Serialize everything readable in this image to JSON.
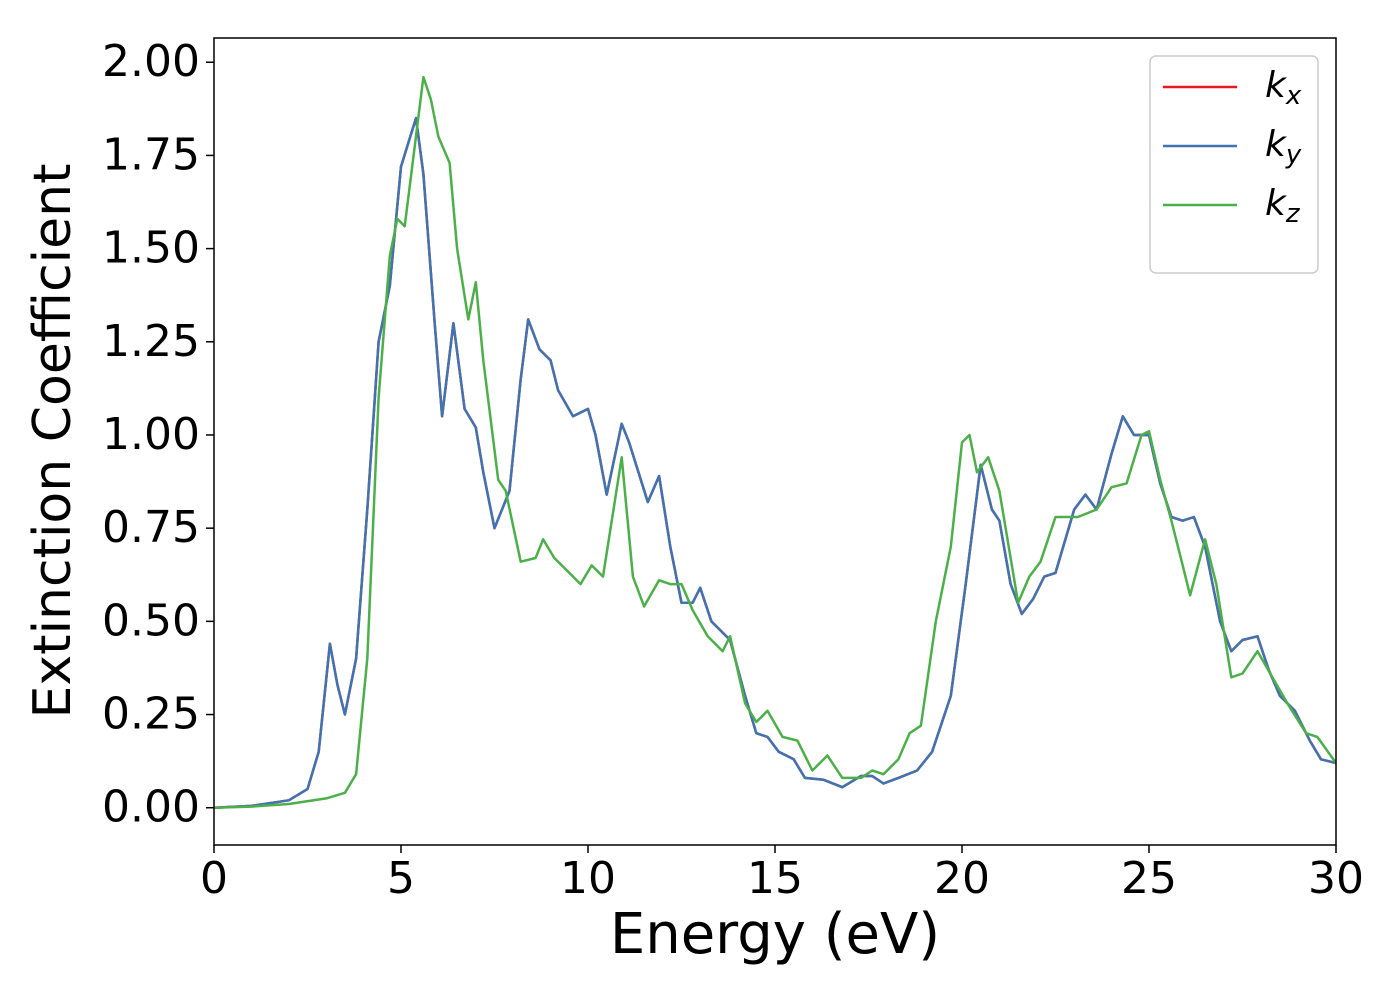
{
  "chart_data": {
    "type": "line",
    "xlabel": "Energy (eV)",
    "ylabel": "Extinction Coefficient",
    "xlim": [
      0,
      30
    ],
    "ylim": [
      -0.1,
      2.065
    ],
    "xticks": [
      0,
      5,
      10,
      15,
      20,
      25,
      30
    ],
    "yticks": [
      {
        "value": 0,
        "label": "0.00"
      },
      {
        "value": 0.25,
        "label": "0.25"
      },
      {
        "value": 0.5,
        "label": "0.50"
      },
      {
        "value": 0.75,
        "label": "0.75"
      },
      {
        "value": 1,
        "label": "1.00"
      },
      {
        "value": 1.25,
        "label": "1.25"
      },
      {
        "value": 1.5,
        "label": "1.50"
      },
      {
        "value": 1.75,
        "label": "1.75"
      },
      {
        "value": 2,
        "label": "2.00"
      }
    ],
    "legend": "upper right",
    "series": [
      {
        "name": "kx",
        "color": "#e41a1c",
        "x": [
          0,
          1,
          2,
          2.5,
          2.8,
          3.1,
          3.3,
          3.5,
          3.8,
          4.1,
          4.4,
          4.7,
          5.0,
          5.4,
          5.6,
          5.9,
          6.1,
          6.4,
          6.7,
          7.0,
          7.2,
          7.5,
          7.9,
          8.2,
          8.4,
          8.7,
          9.0,
          9.2,
          9.6,
          10.0,
          10.2,
          10.5,
          10.9,
          11.1,
          11.6,
          11.9,
          12.2,
          12.5,
          12.8,
          13.0,
          13.3,
          13.8,
          14.2,
          14.5,
          14.8,
          15.1,
          15.5,
          15.8,
          16.3,
          16.8,
          17.3,
          17.6,
          17.9,
          18.3,
          18.8,
          19.2,
          19.7,
          20.1,
          20.5,
          20.8,
          21.0,
          21.3,
          21.6,
          21.9,
          22.2,
          22.5,
          23.0,
          23.3,
          23.6,
          24.0,
          24.3,
          24.6,
          25.0,
          25.3,
          25.6,
          25.9,
          26.2,
          26.5,
          26.9,
          27.2,
          27.5,
          27.9,
          28.2,
          28.5,
          28.9,
          29.3,
          29.6,
          30
        ],
        "values": [
          0,
          0.005,
          0.02,
          0.05,
          0.15,
          0.44,
          0.33,
          0.25,
          0.4,
          0.8,
          1.25,
          1.4,
          1.72,
          1.85,
          1.7,
          1.3,
          1.05,
          1.3,
          1.07,
          1.02,
          0.9,
          0.75,
          0.85,
          1.15,
          1.31,
          1.23,
          1.2,
          1.12,
          1.05,
          1.07,
          1.0,
          0.84,
          1.03,
          0.98,
          0.82,
          0.89,
          0.7,
          0.55,
          0.55,
          0.59,
          0.5,
          0.45,
          0.3,
          0.2,
          0.19,
          0.15,
          0.13,
          0.08,
          0.075,
          0.055,
          0.085,
          0.085,
          0.065,
          0.08,
          0.1,
          0.15,
          0.3,
          0.6,
          0.92,
          0.8,
          0.77,
          0.6,
          0.52,
          0.56,
          0.62,
          0.63,
          0.8,
          0.84,
          0.8,
          0.95,
          1.05,
          1.0,
          1.0,
          0.87,
          0.78,
          0.77,
          0.78,
          0.7,
          0.5,
          0.42,
          0.45,
          0.46,
          0.37,
          0.3,
          0.26,
          0.18,
          0.13,
          0.12
        ]
      },
      {
        "name": "ky",
        "color": "#3f74b0",
        "x": [
          0,
          1,
          2,
          2.5,
          2.8,
          3.1,
          3.3,
          3.5,
          3.8,
          4.1,
          4.4,
          4.7,
          5.0,
          5.4,
          5.6,
          5.9,
          6.1,
          6.4,
          6.7,
          7.0,
          7.2,
          7.5,
          7.9,
          8.2,
          8.4,
          8.7,
          9.0,
          9.2,
          9.6,
          10.0,
          10.2,
          10.5,
          10.9,
          11.1,
          11.6,
          11.9,
          12.2,
          12.5,
          12.8,
          13.0,
          13.3,
          13.8,
          14.2,
          14.5,
          14.8,
          15.1,
          15.5,
          15.8,
          16.3,
          16.8,
          17.3,
          17.6,
          17.9,
          18.3,
          18.8,
          19.2,
          19.7,
          20.1,
          20.5,
          20.8,
          21.0,
          21.3,
          21.6,
          21.9,
          22.2,
          22.5,
          23.0,
          23.3,
          23.6,
          24.0,
          24.3,
          24.6,
          25.0,
          25.3,
          25.6,
          25.9,
          26.2,
          26.5,
          26.9,
          27.2,
          27.5,
          27.9,
          28.2,
          28.5,
          28.9,
          29.3,
          29.6,
          30
        ],
        "values": [
          0,
          0.005,
          0.02,
          0.05,
          0.15,
          0.44,
          0.33,
          0.25,
          0.4,
          0.8,
          1.25,
          1.4,
          1.72,
          1.85,
          1.7,
          1.3,
          1.05,
          1.3,
          1.07,
          1.02,
          0.9,
          0.75,
          0.85,
          1.15,
          1.31,
          1.23,
          1.2,
          1.12,
          1.05,
          1.07,
          1.0,
          0.84,
          1.03,
          0.98,
          0.82,
          0.89,
          0.7,
          0.55,
          0.55,
          0.59,
          0.5,
          0.45,
          0.3,
          0.2,
          0.19,
          0.15,
          0.13,
          0.08,
          0.075,
          0.055,
          0.085,
          0.085,
          0.065,
          0.08,
          0.1,
          0.15,
          0.3,
          0.6,
          0.92,
          0.8,
          0.77,
          0.6,
          0.52,
          0.56,
          0.62,
          0.63,
          0.8,
          0.84,
          0.8,
          0.95,
          1.05,
          1.0,
          1.0,
          0.87,
          0.78,
          0.77,
          0.78,
          0.7,
          0.5,
          0.42,
          0.45,
          0.46,
          0.37,
          0.3,
          0.26,
          0.18,
          0.13,
          0.12
        ]
      },
      {
        "name": "kz",
        "color": "#4daf4a",
        "x": [
          0,
          1,
          2,
          3,
          3.5,
          3.8,
          4.1,
          4.4,
          4.7,
          4.9,
          5.1,
          5.3,
          5.6,
          5.8,
          6.0,
          6.3,
          6.5,
          6.8,
          7.0,
          7.2,
          7.6,
          7.8,
          8.2,
          8.6,
          8.8,
          9.1,
          9.5,
          9.8,
          10.1,
          10.4,
          10.9,
          11.2,
          11.5,
          11.9,
          12.2,
          12.5,
          12.8,
          13.2,
          13.6,
          13.8,
          14.2,
          14.5,
          14.8,
          15.2,
          15.6,
          16.0,
          16.4,
          16.8,
          17.3,
          17.6,
          17.9,
          18.3,
          18.6,
          18.9,
          19.3,
          19.7,
          20.0,
          20.2,
          20.4,
          20.7,
          21.0,
          21.5,
          21.8,
          22.1,
          22.5,
          22.8,
          23.1,
          23.6,
          24.0,
          24.4,
          24.8,
          25.0,
          25.3,
          25.6,
          25.9,
          26.1,
          26.5,
          26.8,
          27.2,
          27.5,
          27.9,
          28.3,
          28.7,
          29.2,
          29.5,
          30
        ],
        "values": [
          0,
          0.003,
          0.01,
          0.025,
          0.04,
          0.09,
          0.4,
          1.1,
          1.48,
          1.58,
          1.56,
          1.72,
          1.96,
          1.9,
          1.8,
          1.73,
          1.5,
          1.31,
          1.41,
          1.2,
          0.88,
          0.85,
          0.66,
          0.67,
          0.72,
          0.67,
          0.63,
          0.6,
          0.65,
          0.62,
          0.94,
          0.62,
          0.54,
          0.61,
          0.6,
          0.6,
          0.53,
          0.46,
          0.42,
          0.46,
          0.28,
          0.23,
          0.26,
          0.19,
          0.18,
          0.1,
          0.14,
          0.08,
          0.08,
          0.1,
          0.09,
          0.13,
          0.2,
          0.22,
          0.5,
          0.7,
          0.98,
          1.0,
          0.9,
          0.94,
          0.85,
          0.55,
          0.62,
          0.66,
          0.78,
          0.78,
          0.78,
          0.8,
          0.86,
          0.87,
          1.0,
          1.01,
          0.88,
          0.77,
          0.65,
          0.57,
          0.72,
          0.6,
          0.35,
          0.36,
          0.42,
          0.35,
          0.28,
          0.2,
          0.19,
          0.12
        ]
      }
    ]
  }
}
